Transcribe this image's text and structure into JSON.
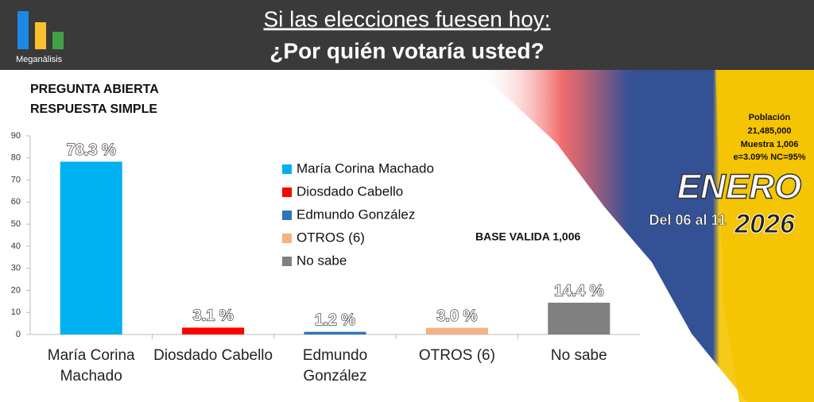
{
  "header": {
    "brand": "Meganálisis",
    "title": "Si las elecciones fuesen hoy:",
    "subtitle": "¿Por quién votaría usted?"
  },
  "question": {
    "line1": "PREGUNTA ABIERTA",
    "line2": "RESPUESTA SIMPLE"
  },
  "sample": {
    "label": "Población",
    "population": "21,485,000",
    "sample": "Muestra 1,006",
    "error": "e=3.09%  NC=95%"
  },
  "period": {
    "month": "ENERO",
    "days": "Del 06 al 11",
    "year": "2026"
  },
  "chart_data": {
    "type": "bar",
    "categories": [
      "María Corina Machado",
      "Diosdado Cabello",
      "Edmundo González",
      "OTROS (6)",
      "No sabe"
    ],
    "values": [
      78.3,
      3.1,
      1.2,
      3.0,
      14.4
    ],
    "value_labels": [
      "78.3 %",
      "3.1 %",
      "1.2 %",
      "3.0 %",
      "14.4 %"
    ],
    "colors": [
      "#00b0f0",
      "#ff0000",
      "#2e75b6",
      "#f4b183",
      "#808080"
    ],
    "ylim": [
      0,
      90
    ],
    "yticks": [
      0,
      10,
      20,
      30,
      40,
      50,
      60,
      70,
      80,
      90
    ],
    "annotation": "BASE VALIDA 1,006",
    "legend": "center"
  }
}
